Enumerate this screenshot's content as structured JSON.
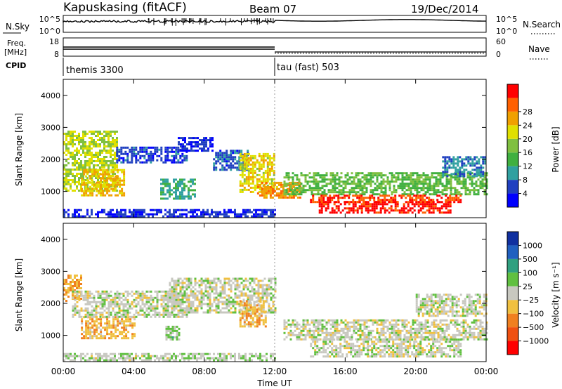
{
  "header": {
    "station": "Kapuskasing (fitACF)",
    "beam": "Beam 07",
    "date": "19/Dec/2014"
  },
  "noise_panel": {
    "left_label": "N.Sky",
    "right_label": "N.Search",
    "left_ticks": [
      "10^5",
      "10^0"
    ],
    "right_ticks": [
      "10^5",
      "10^0"
    ]
  },
  "freq_panel": {
    "left_label_line1": "Freq.",
    "left_label_line2": "[MHz]",
    "left_ticks": [
      "18",
      "8"
    ],
    "right_ticks": [
      "60",
      "0"
    ],
    "right_label": "Nave"
  },
  "cpid": {
    "label": "CPID",
    "modes": [
      {
        "name": "themis 3300",
        "start_hour": 0,
        "end_hour": 12
      },
      {
        "name": "tau (fast) 503",
        "start_hour": 12,
        "end_hour": 24
      }
    ]
  },
  "power_panel": {
    "ylabel": "Slant Range [km]",
    "yticks": [
      "1000",
      "2000",
      "3000",
      "4000"
    ],
    "colorbar_label": "Power [dB]",
    "colorbar_ticks": [
      "4",
      "8",
      "12",
      "16",
      "20",
      "24",
      "28"
    ],
    "colors": [
      "#0000ff",
      "#2040c0",
      "#30a0a0",
      "#40b040",
      "#80c040",
      "#e0e000",
      "#f0a000",
      "#ff6000",
      "#ff0000"
    ]
  },
  "velocity_panel": {
    "ylabel": "Slant Range [km]",
    "yticks": [
      "1000",
      "2000",
      "3000",
      "4000"
    ],
    "colorbar_label": "Velocity [m s⁻¹]",
    "colorbar_ticks": [
      "1000",
      "500",
      "100",
      "25",
      "−25",
      "−100",
      "−500",
      "−1000"
    ],
    "colors": [
      "#1030a0",
      "#2060c0",
      "#30a080",
      "#60c040",
      "#c8c8c0",
      "#f0c040",
      "#f08020",
      "#f05010",
      "#ff0000"
    ]
  },
  "xaxis": {
    "label": "Time UT",
    "ticks": [
      "00:00",
      "04:00",
      "08:00",
      "12:00",
      "16:00",
      "20:00",
      "00:00"
    ]
  },
  "chart_data": {
    "type": "heatmap",
    "title": "Kapuskasing (fitACF)",
    "x_range_hours": [
      0,
      24
    ],
    "y_range_km": [
      180,
      4500
    ],
    "power_range_db": [
      0,
      32
    ],
    "velocity_range_ms": [
      -1200,
      1200
    ],
    "power_regions": [
      {
        "t0": 0.0,
        "t1": 3.0,
        "r0": 1000,
        "r1": 2900,
        "db": 18
      },
      {
        "t0": 1.0,
        "t1": 3.5,
        "r0": 900,
        "r1": 1700,
        "db": 22
      },
      {
        "t0": 3.0,
        "t1": 7.0,
        "r0": 1900,
        "r1": 2400,
        "db": 5
      },
      {
        "t0": 5.5,
        "t1": 7.5,
        "r0": 800,
        "r1": 1400,
        "db": 10
      },
      {
        "t0": 6.5,
        "t1": 8.5,
        "r0": 2300,
        "r1": 2700,
        "db": 4
      },
      {
        "t0": 8.5,
        "t1": 10.5,
        "r0": 1700,
        "r1": 2300,
        "db": 6
      },
      {
        "t0": 10.0,
        "t1": 12.0,
        "r0": 1000,
        "r1": 2200,
        "db": 20
      },
      {
        "t0": 11.0,
        "t1": 13.5,
        "r0": 800,
        "r1": 1300,
        "db": 24
      },
      {
        "t0": 12.5,
        "t1": 24.0,
        "r0": 900,
        "r1": 1600,
        "db": 14
      },
      {
        "t0": 14.0,
        "t1": 22.5,
        "r0": 700,
        "r1": 900,
        "db": 28
      },
      {
        "t0": 14.5,
        "t1": 22.0,
        "r0": 350,
        "r1": 700,
        "db": 30
      },
      {
        "t0": 21.5,
        "t1": 24.0,
        "r0": 1500,
        "r1": 2100,
        "db": 8
      },
      {
        "t0": 0.0,
        "t1": 12.0,
        "r0": 200,
        "r1": 450,
        "db": 4
      }
    ],
    "velocity_regions": [
      {
        "t0": 0.0,
        "t1": 1.0,
        "r0": 2100,
        "r1": 2900,
        "v": -400
      },
      {
        "t0": 1.0,
        "t1": 4.0,
        "r0": 900,
        "r1": 1600,
        "v": -300
      },
      {
        "t0": 0.5,
        "t1": 7.0,
        "r0": 1600,
        "r1": 2400,
        "v": 0
      },
      {
        "t0": 6.0,
        "t1": 12.0,
        "r0": 1700,
        "r1": 2800,
        "v": 0
      },
      {
        "t0": 5.8,
        "t1": 6.6,
        "r0": 900,
        "r1": 1300,
        "v": 200
      },
      {
        "t0": 10.0,
        "t1": 11.5,
        "r0": 1300,
        "r1": 2100,
        "v": -300
      },
      {
        "t0": 12.5,
        "t1": 24.0,
        "r0": 900,
        "r1": 1500,
        "v": 0
      },
      {
        "t0": 14.0,
        "t1": 22.5,
        "r0": 350,
        "r1": 900,
        "v": 0
      },
      {
        "t0": 20.0,
        "t1": 24.0,
        "r0": 1600,
        "r1": 2300,
        "v": 0
      },
      {
        "t0": 0.0,
        "t1": 12.0,
        "r0": 200,
        "r1": 450,
        "v": 60
      }
    ]
  }
}
